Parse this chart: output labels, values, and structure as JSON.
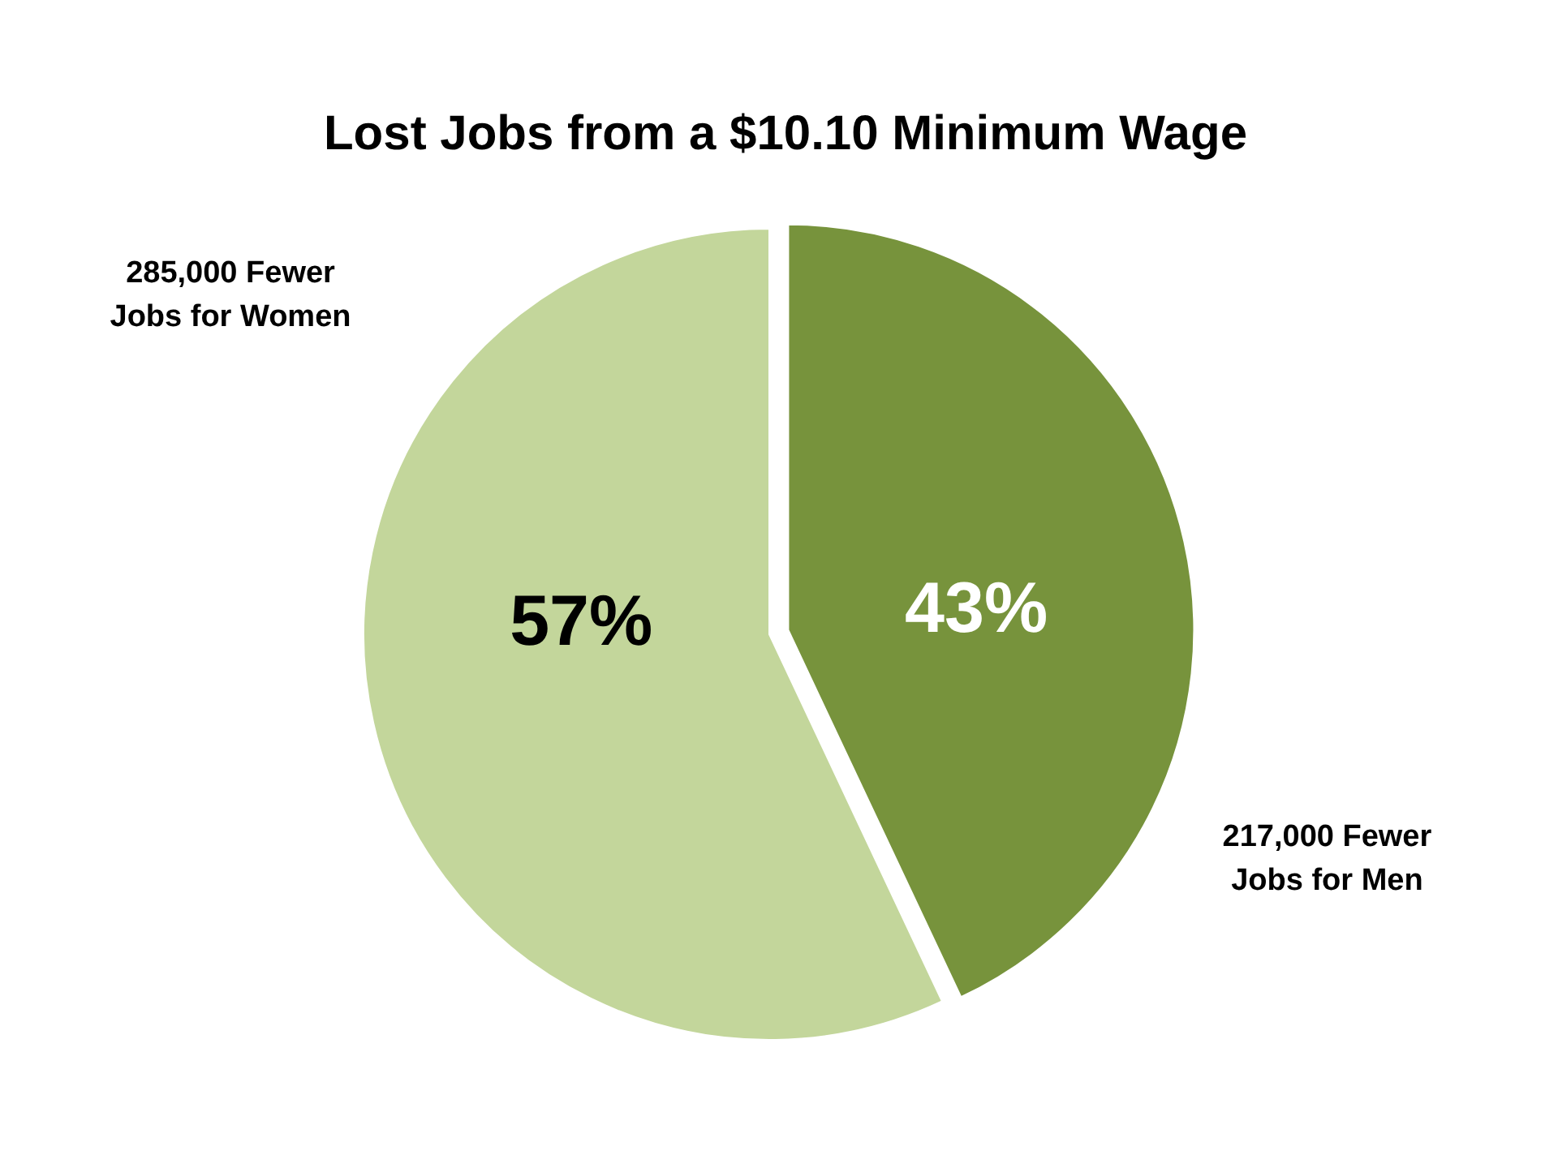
{
  "chart_data": {
    "type": "pie",
    "title": "Lost Jobs from a $10.10 Minimum Wage",
    "categories": [
      "217,000 Fewer\nJobs for Men",
      "285,000 Fewer\nJobs for Women"
    ],
    "values": [
      43,
      57
    ],
    "colors": [
      "#77933c",
      "#c3d69b"
    ],
    "value_labels": [
      "43%",
      "57%"
    ]
  }
}
